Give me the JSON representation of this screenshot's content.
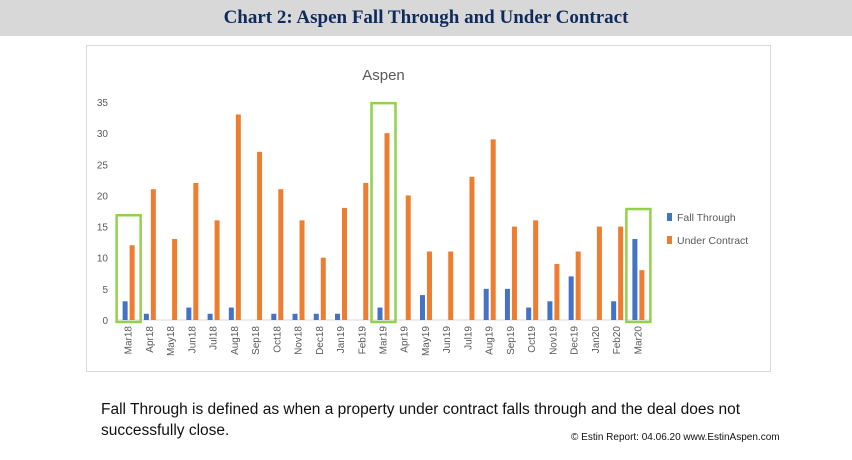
{
  "header": {
    "title": "Chart 2: Aspen Fall Through and Under Contract"
  },
  "caption": {
    "text": "Fall Through is defined as when a property under contract falls through and the deal does not successfully close."
  },
  "credit": {
    "text": "© Estin Report: 04.06.20 www.EstinAspen.com"
  },
  "colors": {
    "fall_through": "#4472c4",
    "under_contract": "#ed7d31",
    "highlight": "#92d050"
  },
  "chart_data": {
    "type": "bar",
    "title": "Aspen",
    "xlabel": "",
    "ylabel": "",
    "ylim": [
      0,
      35
    ],
    "yticks": [
      0,
      5,
      10,
      15,
      20,
      25,
      30,
      35
    ],
    "grid": false,
    "legend_position": "right",
    "categories": [
      "Mar18",
      "Apr18",
      "May18",
      "Jun18",
      "Jul18",
      "Aug18",
      "Sep18",
      "Oct18",
      "Nov18",
      "Dec18",
      "Jan19",
      "Feb19",
      "Mar19",
      "Apr19",
      "May19",
      "Jun19",
      "Jul19",
      "Aug19",
      "Sep19",
      "Oct19",
      "Nov19",
      "Dec19",
      "Jan20",
      "Feb20",
      "Mar20"
    ],
    "series": [
      {
        "name": "Fall Through",
        "values": [
          3,
          1,
          0,
          2,
          1,
          2,
          0,
          1,
          1,
          1,
          1,
          0,
          2,
          0,
          4,
          0,
          0,
          5,
          5,
          2,
          3,
          7,
          0,
          3,
          13
        ]
      },
      {
        "name": "Under Contract",
        "values": [
          12,
          21,
          13,
          22,
          16,
          33,
          27,
          21,
          16,
          10,
          18,
          22,
          30,
          20,
          11,
          11,
          23,
          29,
          15,
          16,
          9,
          11,
          15,
          15,
          8
        ]
      }
    ],
    "highlighted_categories": [
      "Mar18",
      "Mar19",
      "Mar20"
    ]
  }
}
